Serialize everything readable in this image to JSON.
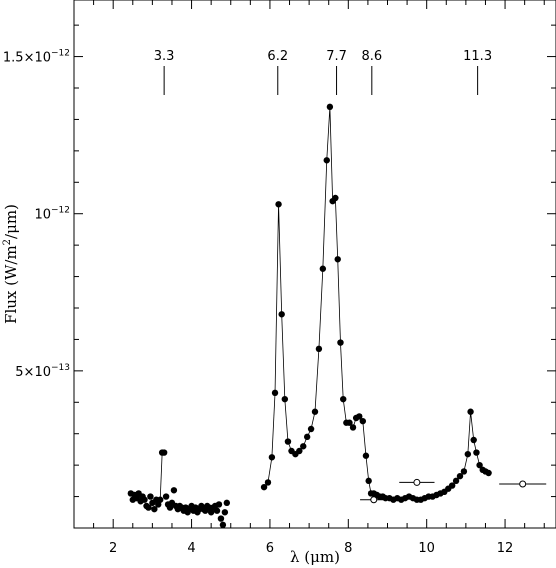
{
  "chart_data": {
    "type": "scatter",
    "xlabel": "λ (μm)",
    "ylabel_prefix": "Flux (W/m",
    "ylabel_sup": "2",
    "ylabel_suffix": "/μm)",
    "xlim": [
      1.0,
      13.3
    ],
    "ylim": [
      0.0,
      1.68e-12
    ],
    "xticks": [
      2,
      4,
      6,
      8,
      10,
      12
    ],
    "xtick_labels": [
      "2",
      "4",
      "6",
      "8",
      "10",
      "12"
    ],
    "yticks": [
      5e-13,
      1e-12,
      1.5e-12
    ],
    "ytick_labels": [
      {
        "mantissa": "5×10",
        "exponent": "−13"
      },
      {
        "mantissa": "10",
        "exponent": "−12"
      },
      {
        "mantissa": "1.5×10",
        "exponent": "−12"
      }
    ],
    "band_markers": [
      {
        "label": "3.3",
        "x": 3.3
      },
      {
        "label": "6.2",
        "x": 6.2
      },
      {
        "label": "7.7",
        "x": 7.7
      },
      {
        "label": "8.6",
        "x": 8.6
      },
      {
        "label": "11.3",
        "x": 11.3
      }
    ],
    "series": [
      {
        "style": "filled-points-with-line",
        "x": [
          5.85,
          5.95,
          6.05,
          6.13,
          6.22,
          6.3,
          6.38,
          6.46,
          6.55,
          6.65,
          6.75,
          6.85,
          6.95,
          7.05,
          7.15,
          7.25,
          7.35,
          7.45,
          7.53,
          7.6,
          7.67,
          7.73,
          7.8,
          7.87,
          7.95,
          8.03,
          8.12,
          8.2,
          8.28,
          8.37,
          8.45,
          8.52,
          8.58,
          8.65,
          8.73,
          8.8,
          8.88,
          8.95,
          9.05,
          9.15,
          9.25,
          9.35,
          9.45,
          9.55,
          9.65,
          9.75,
          9.85,
          9.95,
          10.05,
          10.15,
          10.25,
          10.35,
          10.45,
          10.55,
          10.65,
          10.75,
          10.85,
          10.95,
          11.05,
          11.12,
          11.2,
          11.27,
          11.35,
          11.43,
          11.5,
          11.58
        ],
        "y": [
          1.3e-13,
          1.45e-13,
          2.25e-13,
          4.3e-13,
          1.03e-12,
          6.8e-13,
          4.1e-13,
          2.75e-13,
          2.45e-13,
          2.35e-13,
          2.45e-13,
          2.6e-13,
          2.9e-13,
          3.15e-13,
          3.7e-13,
          5.7e-13,
          8.25e-13,
          1.17e-12,
          1.34e-12,
          1.04e-12,
          1.05e-12,
          8.55e-13,
          5.9e-13,
          4.1e-13,
          3.35e-13,
          3.35e-13,
          3.2e-13,
          3.5e-13,
          3.55e-13,
          3.4e-13,
          2.3e-13,
          1.5e-13,
          1.1e-13,
          1.1e-13,
          1.05e-13,
          1e-13,
          1e-13,
          9.5e-14,
          9.5e-14,
          9e-14,
          9.5e-14,
          9e-14,
          9.5e-14,
          1e-13,
          9.5e-14,
          9e-14,
          9e-14,
          9.5e-14,
          1e-13,
          1e-13,
          1.05e-13,
          1.1e-13,
          1.15e-13,
          1.25e-13,
          1.35e-13,
          1.5e-13,
          1.65e-13,
          1.8e-13,
          2.35e-13,
          3.7e-13,
          2.8e-13,
          2.4e-13,
          2e-13,
          1.85e-13,
          1.8e-13,
          1.75e-13
        ]
      },
      {
        "style": "filled-points-noisy",
        "x": [
          2.45,
          2.5,
          2.55,
          2.6,
          2.65,
          2.7,
          2.75,
          2.8,
          2.85,
          2.9,
          2.95,
          3.0,
          3.05,
          3.1,
          3.15,
          3.2,
          3.25,
          3.3,
          3.35,
          3.4,
          3.45,
          3.5,
          3.55,
          3.6,
          3.65,
          3.7,
          3.75,
          3.8,
          3.85,
          3.9,
          3.95,
          4.0,
          4.05,
          4.1,
          4.15,
          4.2,
          4.25,
          4.3,
          4.35,
          4.4,
          4.45,
          4.5,
          4.55,
          4.6,
          4.65,
          4.7,
          4.75,
          4.8,
          4.85,
          4.9
        ],
        "y": [
          1.1e-13,
          9e-14,
          1.05e-13,
          9.5e-14,
          1.1e-13,
          8.5e-14,
          1e-13,
          9e-14,
          7e-14,
          6.5e-14,
          1e-13,
          8e-14,
          6e-14,
          9e-14,
          7.5e-14,
          9e-14,
          2.4e-13,
          2.4e-13,
          1e-13,
          7.5e-14,
          6.5e-14,
          8e-14,
          1.2e-13,
          7e-14,
          6e-14,
          7e-14,
          6.5e-14,
          5.5e-14,
          6.5e-14,
          5e-14,
          6e-14,
          7e-14,
          5.5e-14,
          6.5e-14,
          5e-14,
          6e-14,
          7e-14,
          6e-14,
          5.5e-14,
          7e-14,
          6.5e-14,
          5e-14,
          6.5e-14,
          7e-14,
          5.5e-14,
          7.5e-14,
          3e-14,
          1e-14,
          5e-14,
          8e-14
        ]
      },
      {
        "style": "open-circles-with-xerr",
        "x": [
          8.65,
          9.75,
          12.45
        ],
        "y": [
          9e-14,
          1.45e-13,
          1.4e-13
        ],
        "xerr": [
          0.35,
          0.45,
          0.6
        ]
      }
    ],
    "connect_noisy_pairs": [
      [
        3.2,
        3.25
      ],
      [
        3.25,
        3.3
      ]
    ]
  }
}
